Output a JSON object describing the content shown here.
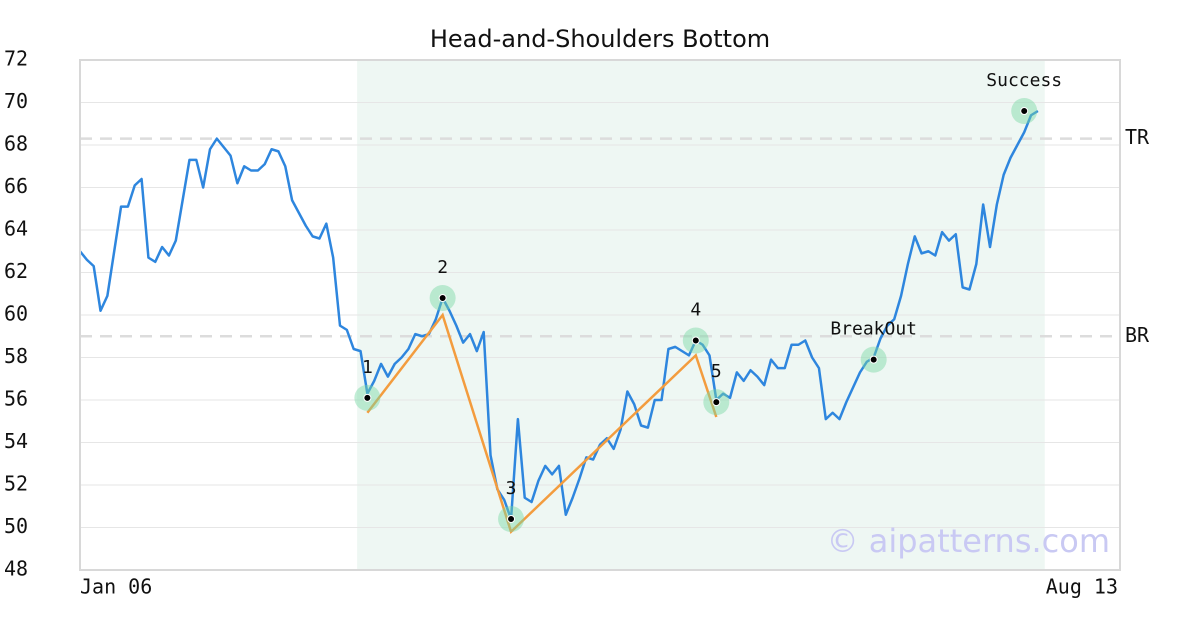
{
  "chart_data": {
    "type": "line",
    "title": "Head-and-Shoulders Bottom",
    "values": [
      63.0,
      62.6,
      62.3,
      60.2,
      60.9,
      63.0,
      65.1,
      65.1,
      66.1,
      66.4,
      62.7,
      62.5,
      63.2,
      62.8,
      63.5,
      65.4,
      67.3,
      67.3,
      66.0,
      67.8,
      68.3,
      67.9,
      67.5,
      66.2,
      67.0,
      66.8,
      66.8,
      67.1,
      67.8,
      67.7,
      67.0,
      65.4,
      64.8,
      64.2,
      63.7,
      63.6,
      64.3,
      62.7,
      59.5,
      59.3,
      58.4,
      58.3,
      56.3,
      56.9,
      57.7,
      57.1,
      57.7,
      58.0,
      58.4,
      59.1,
      59.0,
      59.1,
      59.8,
      60.8,
      60.2,
      59.5,
      58.7,
      59.1,
      58.3,
      59.2,
      53.4,
      51.8,
      51.3,
      50.4,
      55.1,
      51.4,
      51.2,
      52.2,
      52.9,
      52.5,
      52.9,
      50.6,
      51.4,
      52.3,
      53.3,
      53.2,
      53.9,
      54.2,
      53.7,
      54.6,
      56.4,
      55.8,
      54.8,
      54.7,
      56.0,
      56.0,
      58.4,
      58.5,
      58.3,
      58.1,
      58.8,
      58.6,
      58.1,
      56.0,
      56.3,
      56.1,
      57.3,
      56.9,
      57.4,
      57.1,
      56.7,
      57.9,
      57.5,
      57.5,
      58.6,
      58.6,
      58.8,
      58.0,
      57.5,
      55.1,
      55.4,
      55.1,
      55.9,
      56.6,
      57.3,
      57.8,
      58.0,
      58.9,
      59.5,
      59.8,
      60.9,
      62.4,
      63.7,
      62.9,
      63.0,
      62.8,
      63.9,
      63.5,
      63.8,
      61.3,
      61.2,
      62.4,
      65.2,
      63.2,
      65.2,
      66.6,
      67.4,
      68.0,
      68.6,
      69.4,
      69.6
    ],
    "color": "#2e86de",
    "xlim": [
      0,
      152
    ],
    "xticks": [
      {
        "value": 0,
        "label": "Jan 06"
      },
      {
        "value": 152,
        "label": "Aug 13"
      }
    ],
    "ylim": [
      48,
      72
    ],
    "yticks": [
      48,
      50,
      52,
      54,
      56,
      58,
      60,
      62,
      64,
      66,
      68,
      70,
      72
    ],
    "grid": true,
    "highlight": {
      "x": [
        40.5,
        141
      ],
      "color": "#eef7f3"
    },
    "pattern": {
      "color": "#f39c3e",
      "x": [
        42,
        53,
        63,
        90,
        93
      ],
      "values": [
        55.4,
        60.0,
        49.8,
        58.1,
        55.2
      ]
    },
    "points": [
      {
        "label": "1",
        "x": 42,
        "value": 56.1
      },
      {
        "label": "2",
        "x": 53,
        "value": 60.8
      },
      {
        "label": "3",
        "x": 63,
        "value": 50.4
      },
      {
        "label": "4",
        "x": 90,
        "value": 58.8
      },
      {
        "label": "5",
        "x": 93,
        "value": 55.9
      },
      {
        "label": "BreakOut",
        "x": 116,
        "value": 57.9
      },
      {
        "label": "Success",
        "x": 138,
        "value": 69.6
      }
    ],
    "hlines": [
      {
        "label": "TR",
        "value": 68.3
      },
      {
        "label": "BR",
        "value": 59.0
      }
    ],
    "watermark": "© aipatterns.com"
  }
}
